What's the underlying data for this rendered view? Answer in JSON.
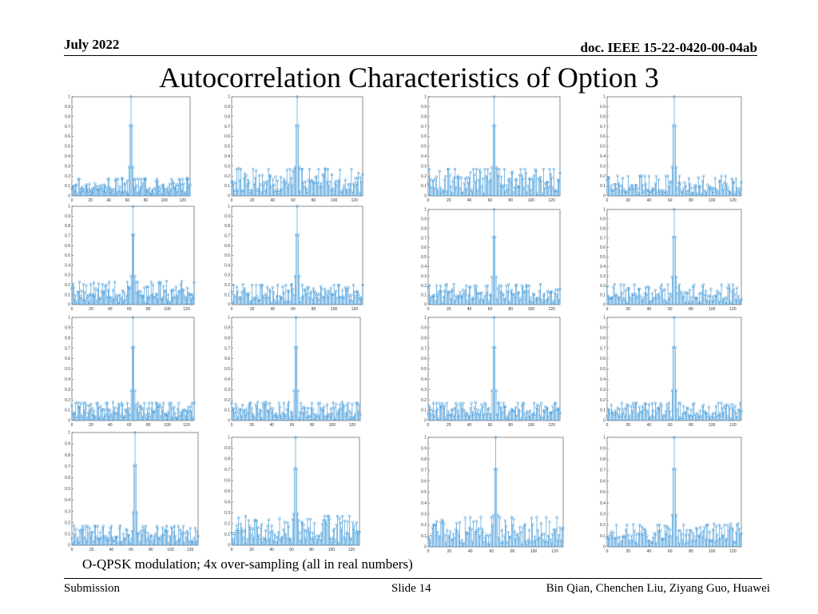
{
  "header": {
    "date": "July 2022",
    "doc_id": "doc. IEEE 15-22-0420-00-04ab"
  },
  "title": "Autocorrelation Characteristics of Option 3",
  "caption": "O-QPSK modulation; 4x over-sampling (all in real numbers)",
  "footer": {
    "left": "Submission",
    "center": "Slide 14",
    "right": "Bin Qian, Chenchen Liu, Ziyang Guo, Huawei"
  },
  "colors": {
    "stem": "#2f8fd6",
    "axes": "#444444"
  },
  "chart_data": {
    "type": "stem",
    "grid": "4x4",
    "xlim": [
      0,
      128
    ],
    "ylim": [
      0,
      1
    ],
    "xticks": [
      0,
      20,
      40,
      60,
      80,
      100,
      120
    ],
    "yticks": [
      0.1,
      0.2,
      0.3,
      0.4,
      0.5,
      0.6,
      0.7,
      0.8,
      0.9,
      1
    ],
    "peak_lag": 64,
    "peak_value": 1,
    "adjacent_lag_values": [
      0.71,
      0.29
    ],
    "sidelobe_max": 0.27,
    "panels": [
      {
        "row": 1,
        "col": 1,
        "sidelobe_peak": 0.17
      },
      {
        "row": 1,
        "col": 2,
        "sidelobe_peak": 0.27
      },
      {
        "row": 1,
        "col": 3,
        "sidelobe_peak": 0.27
      },
      {
        "row": 1,
        "col": 4,
        "sidelobe_peak": 0.2
      },
      {
        "row": 2,
        "col": 1,
        "sidelobe_peak": 0.23
      },
      {
        "row": 2,
        "col": 2,
        "sidelobe_peak": 0.2
      },
      {
        "row": 2,
        "col": 3,
        "sidelobe_peak": 0.2
      },
      {
        "row": 2,
        "col": 4,
        "sidelobe_peak": 0.21
      },
      {
        "row": 3,
        "col": 1,
        "sidelobe_peak": 0.17
      },
      {
        "row": 3,
        "col": 2,
        "sidelobe_peak": 0.17
      },
      {
        "row": 3,
        "col": 3,
        "sidelobe_peak": 0.17
      },
      {
        "row": 3,
        "col": 4,
        "sidelobe_peak": 0.17
      },
      {
        "row": 4,
        "col": 1,
        "sidelobe_peak": 0.17
      },
      {
        "row": 4,
        "col": 2,
        "sidelobe_peak": 0.27
      },
      {
        "row": 4,
        "col": 3,
        "sidelobe_peak": 0.27
      },
      {
        "row": 4,
        "col": 4,
        "sidelobe_peak": 0.2
      }
    ]
  }
}
